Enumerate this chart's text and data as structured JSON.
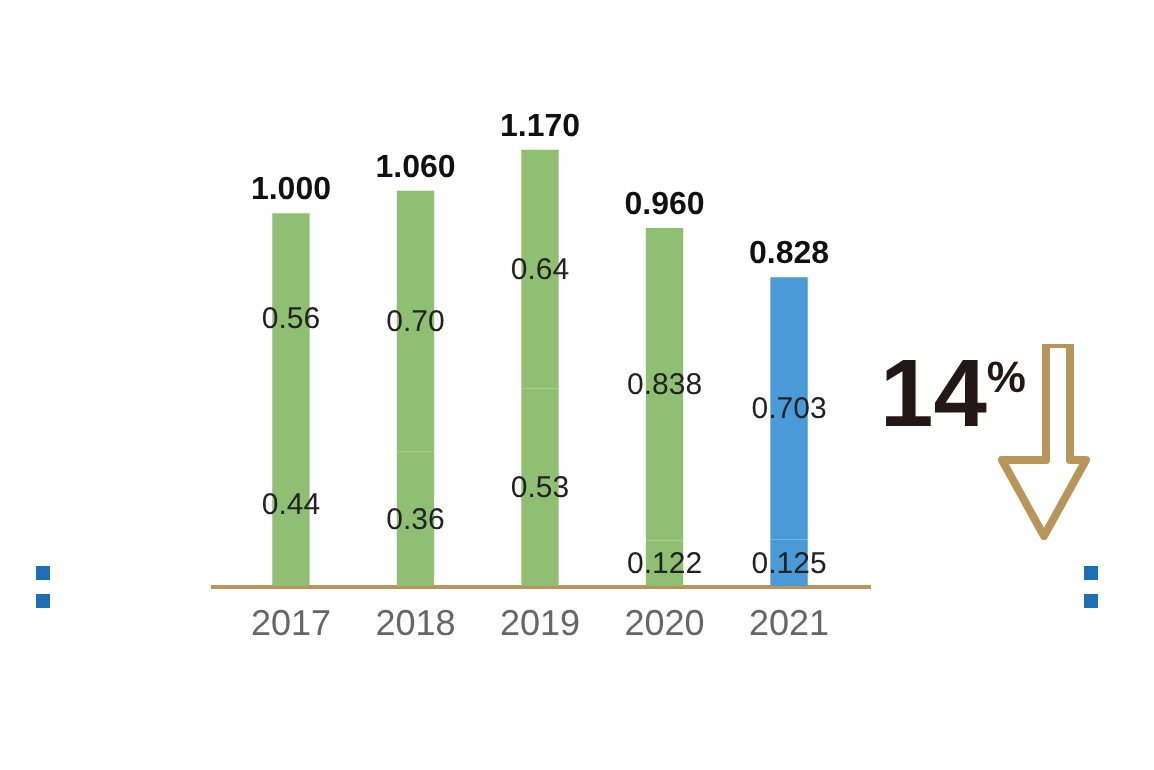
{
  "chart_data": {
    "type": "bar",
    "stacked": true,
    "categories": [
      "2017",
      "2018",
      "2019",
      "2020",
      "2021"
    ],
    "series": [
      {
        "colors": [
          "#8fbf73",
          "#8fbf73",
          "#8fbf73",
          "#8fbf73",
          "#4a9ad8"
        ],
        "values": [
          0.44,
          0.36,
          0.53,
          0.122,
          0.125
        ],
        "value_labels": [
          "0.44",
          "0.36",
          "0.53",
          "0.122",
          "0.125"
        ]
      },
      {
        "colors": [
          "#8fbf73",
          "#8fbf73",
          "#8fbf73",
          "#8fbf73",
          "#4a9ad8"
        ],
        "values": [
          0.56,
          0.7,
          0.64,
          0.838,
          0.703
        ],
        "value_labels": [
          "0.56",
          "0.70",
          "0.64",
          "0.838",
          "0.703"
        ]
      }
    ],
    "totals": [
      "1.000",
      "1.060",
      "1.170",
      "0.960",
      "0.828"
    ],
    "annotations": [
      "14$^{%}$"
    ]
  }
}
